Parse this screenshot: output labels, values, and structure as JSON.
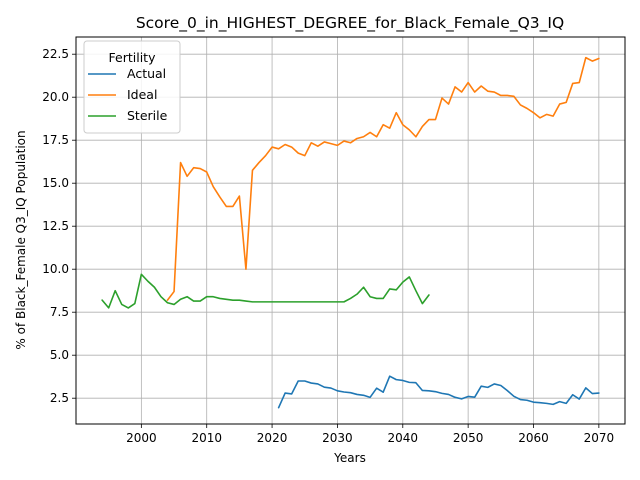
{
  "chart_data": {
    "type": "line",
    "title": "Score_0_in_HIGHEST_DEGREE_for_Black_Female_Q3_IQ",
    "xlabel": "Years",
    "ylabel": "% of Black_Female Q3_IQ Population",
    "xlim": [
      1990,
      2074
    ],
    "ylim": [
      1.0,
      23.5
    ],
    "xticks": [
      2000,
      2010,
      2020,
      2030,
      2040,
      2050,
      2060,
      2070
    ],
    "yticks": [
      2.5,
      5.0,
      7.5,
      10.0,
      12.5,
      15.0,
      17.5,
      20.0,
      22.5
    ],
    "grid": true,
    "legend": {
      "title": "Fertility",
      "placement": "upper-left"
    },
    "series": [
      {
        "name": "Actual",
        "color": "#1f77b4",
        "x": [
          2021,
          2022,
          2023,
          2024,
          2025,
          2026,
          2027,
          2028,
          2029,
          2030,
          2031,
          2032,
          2033,
          2034,
          2035,
          2036,
          2037,
          2038,
          2039,
          2040,
          2041,
          2042,
          2043,
          2044,
          2045,
          2046,
          2047,
          2048,
          2049,
          2050,
          2051,
          2052,
          2053,
          2054,
          2055,
          2056,
          2057,
          2058,
          2059,
          2060,
          2061,
          2062,
          2063,
          2064,
          2065,
          2066,
          2067,
          2068,
          2069,
          2070
        ],
        "y": [
          1.95,
          2.8,
          2.75,
          3.5,
          3.5,
          3.38,
          3.33,
          3.14,
          3.09,
          2.93,
          2.86,
          2.82,
          2.72,
          2.67,
          2.55,
          3.08,
          2.85,
          3.78,
          3.58,
          3.53,
          3.42,
          3.4,
          2.95,
          2.93,
          2.88,
          2.78,
          2.72,
          2.55,
          2.46,
          2.6,
          2.56,
          3.2,
          3.13,
          3.33,
          3.24,
          2.94,
          2.61,
          2.42,
          2.38,
          2.27,
          2.24,
          2.2,
          2.14,
          2.3,
          2.2,
          2.7,
          2.45,
          3.1,
          2.77,
          2.8
        ]
      },
      {
        "name": "Ideal",
        "color": "#ff7f0e",
        "x": [
          2004,
          2005,
          2006,
          2007,
          2008,
          2009,
          2010,
          2011,
          2012,
          2013,
          2014,
          2015,
          2016,
          2017,
          2018,
          2019,
          2020,
          2021,
          2022,
          2023,
          2024,
          2025,
          2026,
          2027,
          2028,
          2029,
          2030,
          2031,
          2032,
          2033,
          2034,
          2035,
          2036,
          2037,
          2038,
          2039,
          2040,
          2041,
          2042,
          2043,
          2044,
          2045,
          2046,
          2047,
          2048,
          2049,
          2050,
          2051,
          2052,
          2053,
          2054,
          2055,
          2056,
          2057,
          2058,
          2059,
          2060,
          2061,
          2062,
          2063,
          2064,
          2065,
          2066,
          2067,
          2068,
          2069,
          2070
        ],
        "y": [
          8.2,
          8.7,
          16.2,
          15.4,
          15.9,
          15.85,
          15.65,
          14.8,
          14.2,
          13.65,
          13.65,
          14.25,
          10.0,
          15.75,
          16.2,
          16.6,
          17.1,
          17.0,
          17.25,
          17.1,
          16.75,
          16.6,
          17.35,
          17.15,
          17.4,
          17.3,
          17.2,
          17.45,
          17.35,
          17.6,
          17.7,
          17.95,
          17.7,
          18.4,
          18.2,
          19.1,
          18.4,
          18.1,
          17.7,
          18.3,
          18.7,
          18.7,
          19.95,
          19.6,
          20.6,
          20.3,
          20.85,
          20.3,
          20.65,
          20.35,
          20.3,
          20.1,
          20.1,
          20.05,
          19.55,
          19.35,
          19.1,
          18.8,
          19.0,
          18.9,
          19.6,
          19.7,
          20.8,
          20.85,
          22.3,
          22.1,
          22.25
        ]
      },
      {
        "name": "Sterile",
        "color": "#2ca02c",
        "x": [
          1994,
          1995,
          1996,
          1997,
          1998,
          1999,
          2000,
          2001,
          2002,
          2003,
          2004,
          2005,
          2006,
          2007,
          2008,
          2009,
          2010,
          2011,
          2012,
          2013,
          2014,
          2015,
          2016,
          2017,
          2018,
          2019,
          2020,
          2021,
          2022,
          2023,
          2024,
          2025,
          2026,
          2027,
          2028,
          2029,
          2030,
          2031,
          2032,
          2033,
          2034,
          2035,
          2036,
          2037,
          2038,
          2039,
          2040,
          2041,
          2042,
          2043,
          2044
        ],
        "y": [
          8.2,
          7.75,
          8.75,
          7.95,
          7.75,
          8.0,
          9.7,
          9.3,
          8.95,
          8.4,
          8.05,
          7.95,
          8.25,
          8.4,
          8.15,
          8.15,
          8.4,
          8.4,
          8.3,
          8.25,
          8.2,
          8.2,
          8.15,
          8.1,
          8.1,
          8.1,
          8.1,
          8.1,
          8.1,
          8.1,
          8.1,
          8.1,
          8.1,
          8.1,
          8.1,
          8.1,
          8.1,
          8.1,
          8.3,
          8.55,
          8.95,
          8.4,
          8.3,
          8.3,
          8.85,
          8.8,
          9.25,
          9.55,
          8.75,
          8.0,
          8.5
        ]
      }
    ]
  }
}
